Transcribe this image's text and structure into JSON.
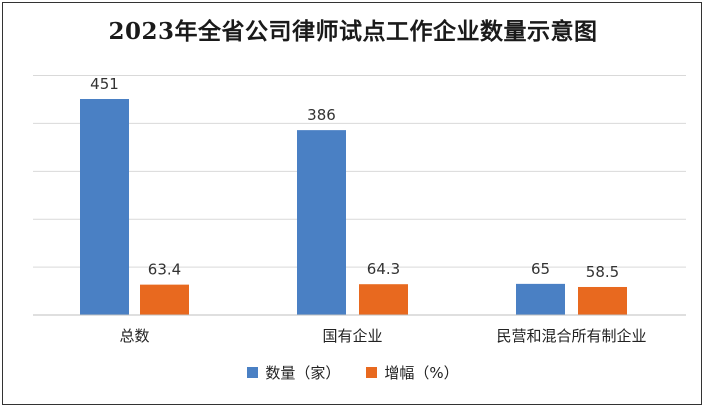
{
  "chart_data": {
    "type": "bar",
    "title": "2023年全省公司律师试点工作企业数量示意图",
    "categories": [
      "总数",
      "国有企业",
      "民营和混合所有制企业"
    ],
    "series": [
      {
        "name": "数量（家）",
        "values": [
          451,
          386,
          65
        ],
        "labels": [
          "451",
          "386",
          "65"
        ],
        "color": "#4a80c4"
      },
      {
        "name": "增幅（%）",
        "values": [
          63.4,
          64.3,
          58.5
        ],
        "labels": [
          "63.4",
          "64.3",
          "58.5"
        ],
        "color": "#e8691f"
      }
    ],
    "grid": true,
    "legend_position": "bottom"
  }
}
